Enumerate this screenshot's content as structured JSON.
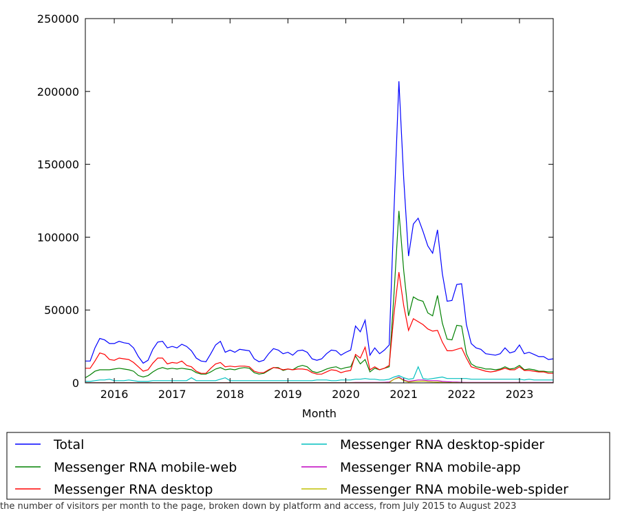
{
  "chart_data": {
    "type": "line",
    "title": "",
    "xlabel": "Month",
    "ylabel": "",
    "ylim": [
      0,
      250000
    ],
    "xlim": [
      "2015-07",
      "2023-08"
    ],
    "grid": false,
    "legend_position": "below",
    "yticks": [
      "0",
      "50000",
      "100000",
      "150000",
      "200000",
      "250000"
    ],
    "xticks": [
      "2016",
      "2017",
      "2018",
      "2019",
      "2020",
      "2021",
      "2022",
      "2023"
    ],
    "x": [
      "2015-07",
      "2015-08",
      "2015-09",
      "2015-10",
      "2015-11",
      "2015-12",
      "2016-01",
      "2016-02",
      "2016-03",
      "2016-04",
      "2016-05",
      "2016-06",
      "2016-07",
      "2016-08",
      "2016-09",
      "2016-10",
      "2016-11",
      "2016-12",
      "2017-01",
      "2017-02",
      "2017-03",
      "2017-04",
      "2017-05",
      "2017-06",
      "2017-07",
      "2017-08",
      "2017-09",
      "2017-10",
      "2017-11",
      "2017-12",
      "2018-01",
      "2018-02",
      "2018-03",
      "2018-04",
      "2018-05",
      "2018-06",
      "2018-07",
      "2018-08",
      "2018-09",
      "2018-10",
      "2018-11",
      "2018-12",
      "2019-01",
      "2019-02",
      "2019-03",
      "2019-04",
      "2019-05",
      "2019-06",
      "2019-07",
      "2019-08",
      "2019-09",
      "2019-10",
      "2019-11",
      "2019-12",
      "2020-01",
      "2020-02",
      "2020-03",
      "2020-04",
      "2020-05",
      "2020-06",
      "2020-07",
      "2020-08",
      "2020-09",
      "2020-10",
      "2020-11",
      "2020-12",
      "2021-01",
      "2021-02",
      "2021-03",
      "2021-04",
      "2021-05",
      "2021-06",
      "2021-07",
      "2021-08",
      "2021-09",
      "2021-10",
      "2021-11",
      "2021-12",
      "2022-01",
      "2022-02",
      "2022-03",
      "2022-04",
      "2022-05",
      "2022-06",
      "2022-07",
      "2022-08",
      "2022-09",
      "2022-10",
      "2022-11",
      "2022-12",
      "2023-01",
      "2023-02",
      "2023-03",
      "2023-04",
      "2023-05",
      "2023-06",
      "2023-07",
      "2023-08"
    ],
    "series": [
      {
        "name": "Total",
        "color": "#0000ff",
        "values": [
          15000,
          15000,
          24000,
          30500,
          29500,
          27000,
          27000,
          28500,
          27500,
          27000,
          24000,
          18000,
          13500,
          15500,
          23000,
          28000,
          28500,
          24000,
          25000,
          24000,
          26500,
          25000,
          22000,
          17000,
          15000,
          14500,
          20000,
          26000,
          28500,
          21000,
          22500,
          21000,
          23000,
          22500,
          22000,
          16500,
          14500,
          15500,
          20000,
          23500,
          22500,
          20000,
          21000,
          19000,
          22000,
          22500,
          21000,
          16500,
          15500,
          16500,
          20000,
          22500,
          22000,
          19000,
          21000,
          22500,
          39000,
          35000,
          43000,
          19000,
          24000,
          20000,
          22500,
          26000,
          120000,
          207000,
          140000,
          87000,
          109000,
          113000,
          104000,
          94000,
          89000,
          105000,
          75000,
          56000,
          56500,
          67500,
          68000,
          40000,
          27000,
          24000,
          23000,
          20000,
          19500,
          19000,
          20000,
          24000,
          20500,
          21500,
          26000,
          20000,
          21000,
          19500,
          18000,
          18000,
          16000,
          16500
        ]
      },
      {
        "name": "Messenger RNA mobile-web",
        "color": "#008000",
        "values": [
          3500,
          5500,
          8000,
          9000,
          9000,
          9000,
          9500,
          10000,
          9500,
          9000,
          8000,
          5000,
          4000,
          5000,
          7500,
          9500,
          10500,
          9500,
          10000,
          9500,
          10000,
          9500,
          9000,
          7000,
          6000,
          6000,
          7500,
          9500,
          10500,
          9000,
          9500,
          9000,
          10000,
          10500,
          10000,
          7000,
          6000,
          6500,
          8500,
          10500,
          10500,
          8500,
          9500,
          9000,
          11000,
          12000,
          11000,
          8000,
          7000,
          8000,
          9500,
          10500,
          11000,
          9500,
          10500,
          11000,
          18500,
          13000,
          16000,
          7500,
          10000,
          9000,
          10000,
          11000,
          62000,
          118000,
          77000,
          46000,
          59000,
          57000,
          56000,
          48000,
          46000,
          60000,
          41000,
          30000,
          29500,
          39500,
          39000,
          20000,
          13000,
          11000,
          10500,
          9500,
          9500,
          9000,
          9500,
          11000,
          9500,
          10000,
          12000,
          9000,
          9500,
          9000,
          8000,
          8000,
          7500,
          7500
        ]
      },
      {
        "name": "Messenger RNA desktop",
        "color": "#ff0000",
        "values": [
          10000,
          10000,
          15000,
          20500,
          19500,
          16000,
          15500,
          17000,
          16500,
          16000,
          14000,
          11000,
          8000,
          9000,
          13500,
          17000,
          17000,
          13000,
          14000,
          13500,
          15000,
          12000,
          11000,
          8000,
          6500,
          6500,
          10000,
          13000,
          14000,
          11000,
          11500,
          11000,
          11500,
          11500,
          11000,
          8000,
          7000,
          7000,
          9000,
          10500,
          10000,
          9000,
          9500,
          9000,
          9500,
          9500,
          9000,
          7000,
          6000,
          6000,
          7500,
          9000,
          8500,
          7000,
          8000,
          8500,
          19500,
          17000,
          24500,
          9000,
          11000,
          9000,
          10000,
          12000,
          48000,
          76000,
          53000,
          36000,
          44000,
          42000,
          40000,
          37000,
          35500,
          36000,
          28000,
          22000,
          22000,
          23000,
          24000,
          17000,
          11000,
          10000,
          9000,
          8000,
          7500,
          8000,
          9000,
          10000,
          9000,
          9000,
          11000,
          8500,
          8500,
          8000,
          7500,
          7500,
          6500,
          6500
        ]
      },
      {
        "name": "Messenger RNA desktop-spider",
        "color": "#00bfbf",
        "values": [
          1000,
          1000,
          1500,
          2000,
          2000,
          2500,
          1500,
          1500,
          1500,
          2000,
          1500,
          1000,
          1000,
          1000,
          1500,
          1500,
          1500,
          1500,
          1500,
          1500,
          1500,
          1500,
          3500,
          1500,
          1500,
          1500,
          1500,
          1500,
          2500,
          3500,
          1500,
          1500,
          1500,
          1500,
          1500,
          1500,
          1500,
          1500,
          1500,
          1500,
          1500,
          1500,
          1500,
          1500,
          1500,
          1500,
          1500,
          1500,
          2000,
          2000,
          2000,
          1500,
          1500,
          2000,
          2000,
          2000,
          2500,
          2500,
          3000,
          2500,
          2500,
          2000,
          2000,
          2500,
          4000,
          5000,
          3500,
          2500,
          3000,
          11000,
          3000,
          2500,
          3000,
          3500,
          4000,
          3000,
          3000,
          3000,
          3000,
          3000,
          2500,
          2500,
          2500,
          2500,
          2500,
          2500,
          2500,
          2500,
          2500,
          2500,
          2500,
          2000,
          2500,
          2000,
          2000,
          2000,
          2000,
          2000
        ]
      },
      {
        "name": "Messenger RNA mobile-app",
        "color": "#bf00bf",
        "values": [
          200,
          200,
          200,
          200,
          200,
          200,
          200,
          200,
          200,
          200,
          200,
          200,
          200,
          200,
          200,
          200,
          200,
          200,
          200,
          200,
          200,
          200,
          200,
          200,
          200,
          200,
          200,
          200,
          200,
          200,
          200,
          200,
          200,
          200,
          200,
          200,
          200,
          200,
          200,
          200,
          200,
          200,
          200,
          200,
          200,
          200,
          200,
          200,
          200,
          200,
          200,
          200,
          200,
          200,
          200,
          200,
          300,
          300,
          300,
          300,
          300,
          300,
          400,
          500,
          2500,
          4000,
          2000,
          1000,
          1500,
          2000,
          2000,
          1500,
          1500,
          1500,
          1000,
          800,
          600,
          500,
          400,
          300,
          300,
          300,
          300,
          300,
          300,
          300,
          300,
          300,
          300,
          300,
          300,
          300,
          300,
          300,
          300,
          300,
          300,
          300
        ]
      },
      {
        "name": "Messenger RNA mobile-web-spider",
        "color": "#bfbf00",
        "values": [
          50,
          50,
          50,
          50,
          50,
          50,
          50,
          50,
          50,
          50,
          50,
          50,
          50,
          50,
          50,
          50,
          50,
          50,
          50,
          50,
          50,
          50,
          50,
          50,
          50,
          50,
          50,
          50,
          50,
          50,
          50,
          50,
          50,
          50,
          50,
          50,
          50,
          50,
          50,
          50,
          50,
          50,
          50,
          50,
          50,
          50,
          50,
          50,
          50,
          50,
          50,
          50,
          50,
          50,
          50,
          50,
          50,
          50,
          50,
          50,
          50,
          50,
          100,
          100,
          2500,
          3500,
          1500,
          500,
          800,
          1000,
          1200,
          800,
          600,
          500,
          300,
          200,
          200,
          150,
          100,
          100,
          100,
          100,
          100,
          100,
          100,
          100,
          100,
          100,
          100,
          100,
          100,
          100,
          100,
          100,
          100,
          100,
          100,
          100
        ]
      }
    ]
  },
  "caption": "the number of visitors per month to the page, broken down by platform and access, from July 2015 to August 2023"
}
